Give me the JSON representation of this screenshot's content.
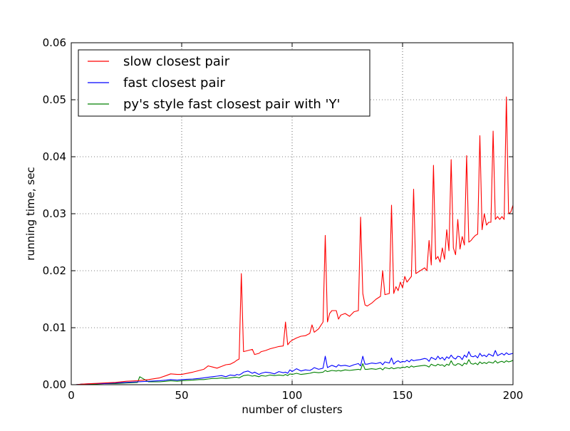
{
  "chart_data": {
    "type": "line",
    "title": "",
    "xlabel": "number of clusters",
    "ylabel": "running time, sec",
    "xlim": [
      0,
      200
    ],
    "ylim": [
      0,
      0.06
    ],
    "xticks": [
      0,
      50,
      100,
      150,
      200
    ],
    "yticks": [
      0.0,
      0.01,
      0.02,
      0.03,
      0.04,
      0.05,
      0.06
    ],
    "xtick_labels": [
      "0",
      "50",
      "100",
      "150",
      "200"
    ],
    "ytick_labels": [
      "0.00",
      "0.01",
      "0.02",
      "0.03",
      "0.04",
      "0.05",
      "0.06"
    ],
    "grid": true,
    "legend_position": "top-left",
    "x": [
      2,
      5,
      10,
      15,
      20,
      25,
      30,
      35,
      40,
      43,
      45,
      48,
      50,
      55,
      58,
      60,
      62,
      64,
      66,
      68,
      70,
      72,
      74,
      75,
      76,
      77,
      78,
      80,
      82,
      83,
      85,
      86,
      88,
      90,
      92,
      94,
      96,
      97,
      98,
      99,
      100,
      102,
      104,
      106,
      108,
      109,
      110,
      112,
      114,
      115,
      116,
      117,
      118,
      120,
      121,
      122,
      124,
      126,
      128,
      130,
      131,
      132,
      133,
      134,
      136,
      138,
      140,
      141,
      142,
      144,
      145,
      146,
      147,
      148,
      149,
      150,
      151,
      152,
      153,
      154,
      155,
      156,
      158,
      160,
      161,
      162,
      163,
      164,
      165,
      166,
      167,
      168,
      169,
      170,
      171,
      172,
      173,
      174,
      175,
      176,
      177,
      178,
      179,
      180,
      181,
      182,
      183,
      184,
      185,
      186,
      187,
      188,
      189,
      190,
      191,
      192,
      193,
      194,
      195,
      196,
      197,
      198,
      199,
      200
    ],
    "series": [
      {
        "name": "slow closest pair",
        "color": "#ff0000",
        "values": [
          0.0,
          0.0001,
          0.0002,
          0.0003,
          0.0004,
          0.0006,
          0.0007,
          0.0009,
          0.0012,
          0.0016,
          0.0019,
          0.0018,
          0.0018,
          0.0022,
          0.0025,
          0.0027,
          0.0033,
          0.0031,
          0.0029,
          0.0032,
          0.0035,
          0.0036,
          0.004,
          0.0043,
          0.0045,
          0.0195,
          0.0058,
          0.006,
          0.0062,
          0.0053,
          0.0055,
          0.0058,
          0.006,
          0.0063,
          0.0065,
          0.0067,
          0.0068,
          0.011,
          0.007,
          0.0075,
          0.0078,
          0.0082,
          0.0085,
          0.0086,
          0.009,
          0.0105,
          0.0092,
          0.0098,
          0.011,
          0.0262,
          0.011,
          0.0125,
          0.013,
          0.013,
          0.0115,
          0.0122,
          0.0125,
          0.012,
          0.0128,
          0.013,
          0.0294,
          0.016,
          0.014,
          0.0138,
          0.0143,
          0.015,
          0.0155,
          0.02,
          0.0158,
          0.016,
          0.0315,
          0.016,
          0.0172,
          0.0165,
          0.018,
          0.017,
          0.019,
          0.018,
          0.0185,
          0.019,
          0.0343,
          0.0195,
          0.02,
          0.0205,
          0.02,
          0.0253,
          0.021,
          0.0385,
          0.022,
          0.0225,
          0.0215,
          0.024,
          0.022,
          0.0272,
          0.0235,
          0.0395,
          0.024,
          0.0228,
          0.029,
          0.0238,
          0.026,
          0.0245,
          0.0402,
          0.025,
          0.0253,
          0.0258,
          0.0262,
          0.0264,
          0.0437,
          0.0272,
          0.03,
          0.028,
          0.0285,
          0.0285,
          0.0445,
          0.029,
          0.0295,
          0.029,
          0.0295,
          0.029,
          0.0505,
          0.03,
          0.0303,
          0.0315
        ]
      },
      {
        "name": "fast closest pair",
        "color": "#0000ff",
        "values": [
          0.0,
          0.0001,
          0.0002,
          0.0002,
          0.0003,
          0.0004,
          0.0005,
          0.0006,
          0.0007,
          0.0008,
          0.0009,
          0.0008,
          0.0009,
          0.001,
          0.0011,
          0.0012,
          0.0013,
          0.0014,
          0.0015,
          0.0016,
          0.0014,
          0.0017,
          0.0016,
          0.0018,
          0.0017,
          0.0019,
          0.0022,
          0.0024,
          0.002,
          0.0022,
          0.0018,
          0.002,
          0.0022,
          0.0021,
          0.0019,
          0.0023,
          0.0021,
          0.0022,
          0.002,
          0.0026,
          0.0023,
          0.0028,
          0.0024,
          0.0026,
          0.0025,
          0.0027,
          0.003,
          0.0027,
          0.0029,
          0.005,
          0.003,
          0.0032,
          0.0034,
          0.0031,
          0.0035,
          0.0033,
          0.0034,
          0.0032,
          0.0035,
          0.0037,
          0.0033,
          0.005,
          0.0036,
          0.0036,
          0.0038,
          0.0037,
          0.0039,
          0.0035,
          0.004,
          0.0038,
          0.0047,
          0.0036,
          0.004,
          0.0042,
          0.0039,
          0.0041,
          0.004,
          0.0043,
          0.004,
          0.0044,
          0.0042,
          0.0043,
          0.0044,
          0.0046,
          0.0045,
          0.0041,
          0.0048,
          0.0046,
          0.0044,
          0.005,
          0.0045,
          0.0048,
          0.0043,
          0.0049,
          0.0046,
          0.0052,
          0.0047,
          0.0045,
          0.005,
          0.0049,
          0.0044,
          0.0052,
          0.0048,
          0.0058,
          0.005,
          0.0049,
          0.0051,
          0.0047,
          0.0055,
          0.005,
          0.0052,
          0.0049,
          0.0054,
          0.0052,
          0.005,
          0.006,
          0.0051,
          0.0053,
          0.0055,
          0.0052,
          0.0056,
          0.0053,
          0.0054,
          0.0055
        ]
      },
      {
        "name": "py's style fast closest pair with 'Y'",
        "color": "#008000",
        "values": [
          0.0,
          0.0001,
          0.0001,
          0.0002,
          0.0002,
          0.0003,
          0.0004,
          0.0005,
          0.0005,
          0.0006,
          0.0007,
          0.0006,
          0.0007,
          0.0008,
          0.0009,
          0.0009,
          0.001,
          0.0011,
          0.0011,
          0.0012,
          0.0011,
          0.0012,
          0.0013,
          0.0013,
          0.0012,
          0.0014,
          0.0016,
          0.0017,
          0.0015,
          0.0016,
          0.0014,
          0.0016,
          0.0015,
          0.0017,
          0.0016,
          0.0017,
          0.0016,
          0.0018,
          0.0016,
          0.0019,
          0.0018,
          0.002,
          0.0018,
          0.0019,
          0.002,
          0.0021,
          0.0022,
          0.0021,
          0.0022,
          0.0025,
          0.0023,
          0.0024,
          0.0025,
          0.0024,
          0.0025,
          0.0024,
          0.0026,
          0.0025,
          0.0026,
          0.0027,
          0.0026,
          0.0037,
          0.0027,
          0.0027,
          0.0028,
          0.0027,
          0.0029,
          0.0026,
          0.003,
          0.0028,
          0.003,
          0.0028,
          0.0029,
          0.003,
          0.0029,
          0.0031,
          0.003,
          0.0032,
          0.003,
          0.0033,
          0.0031,
          0.0032,
          0.0033,
          0.0034,
          0.0033,
          0.0031,
          0.0036,
          0.0034,
          0.0033,
          0.0036,
          0.0034,
          0.0035,
          0.0032,
          0.0036,
          0.0034,
          0.0042,
          0.0035,
          0.0034,
          0.0037,
          0.0036,
          0.0033,
          0.0038,
          0.0036,
          0.0044,
          0.0037,
          0.0036,
          0.0038,
          0.0035,
          0.004,
          0.0037,
          0.0039,
          0.0037,
          0.004,
          0.0039,
          0.0038,
          0.0042,
          0.0038,
          0.004,
          0.0041,
          0.0039,
          0.0042,
          0.004,
          0.0041,
          0.0043
        ]
      }
    ],
    "extra_points": {
      "green_spike": {
        "x": 31,
        "y": 0.0014
      }
    }
  }
}
